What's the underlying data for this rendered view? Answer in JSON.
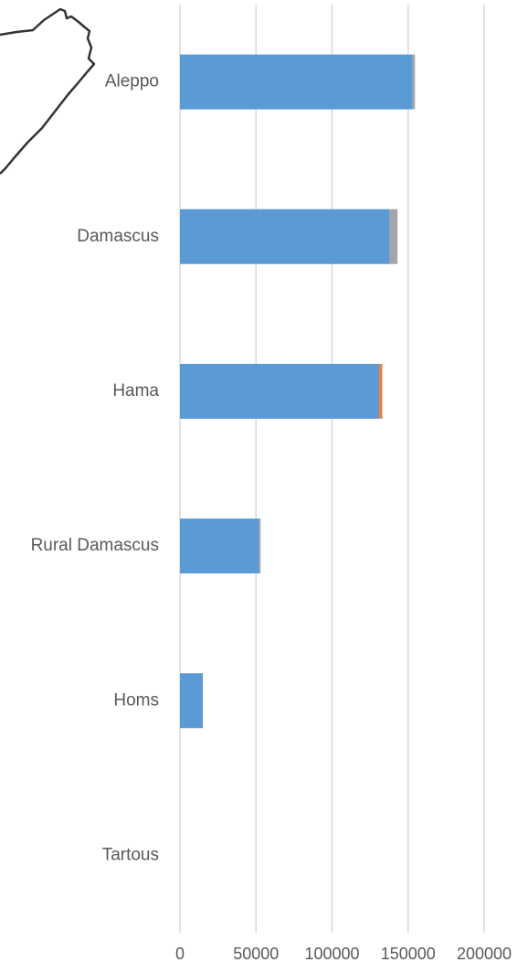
{
  "chart_data": {
    "type": "bar",
    "orientation": "horizontal",
    "stacked": true,
    "categories": [
      "Aleppo",
      "Damascus",
      "Hama",
      "Rural Damascus",
      "Homs",
      "Tartous"
    ],
    "series": [
      {
        "values": [
          153000,
          138000,
          131000,
          52000,
          15000,
          0
        ],
        "color": "#5b9bd5"
      },
      {
        "values": [
          0,
          0,
          2000,
          0,
          0,
          0
        ],
        "color": "#ed7d31"
      },
      {
        "values": [
          1500,
          5000,
          0,
          1000,
          0,
          0
        ],
        "color": "#a5a5a5"
      }
    ],
    "xticks": [
      "0",
      "50000",
      "100000",
      "150000",
      "200000"
    ],
    "xlim": [
      0,
      200000
    ],
    "grid": true,
    "legend": "none",
    "title": "",
    "xlabel": "",
    "ylabel": ""
  },
  "decoration": {
    "map_outline_stroke": "#333333"
  }
}
